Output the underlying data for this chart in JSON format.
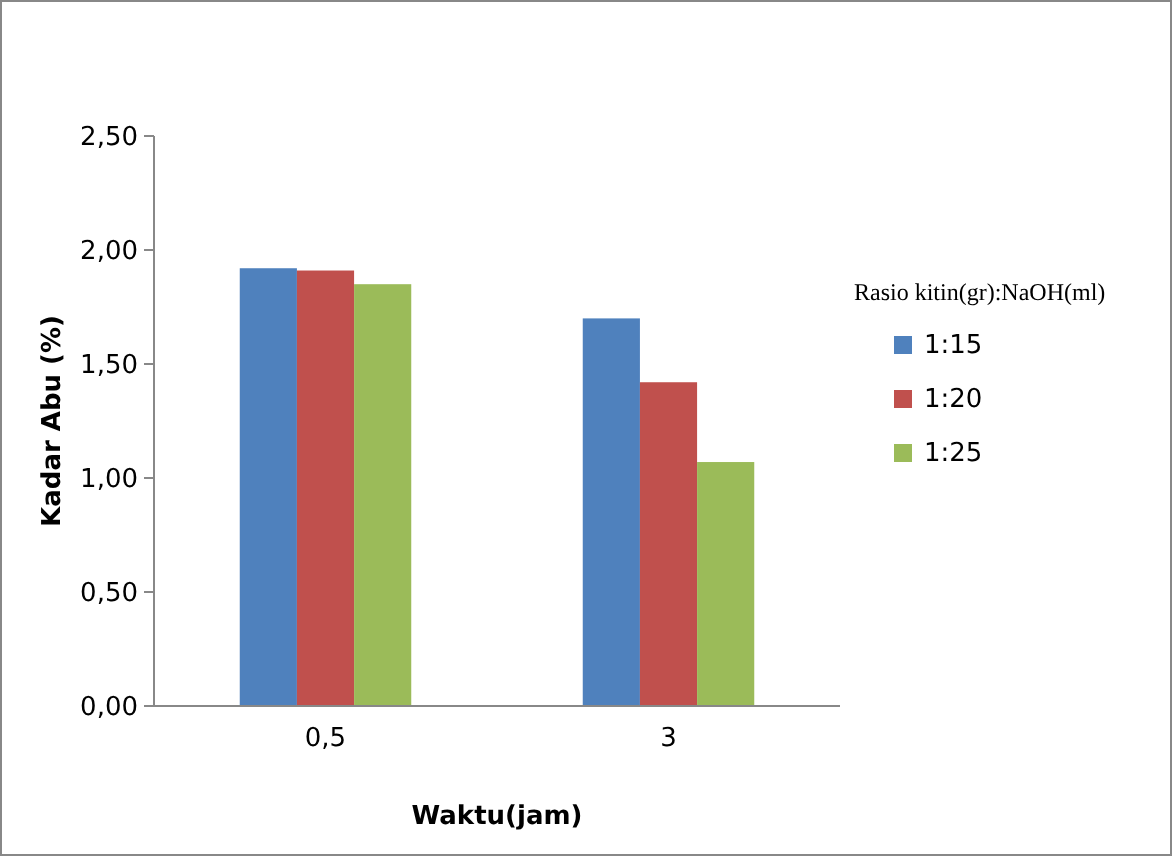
{
  "chart_data": {
    "type": "bar",
    "xlabel": "Waktu(jam)",
    "ylabel": "Kadar Abu (%)",
    "legend_title": "Rasio kitin(gr):NaOH(ml)",
    "categories": [
      "0,5",
      "3"
    ],
    "series": [
      {
        "name": "1:15",
        "color": "#4f81bd",
        "values": [
          1.92,
          1.7
        ]
      },
      {
        "name": "1:20",
        "color": "#c0504d",
        "values": [
          1.91,
          1.42
        ]
      },
      {
        "name": "1:25",
        "color": "#9bbb59",
        "values": [
          1.85,
          1.07
        ]
      }
    ],
    "ylim": [
      0,
      2.5
    ],
    "yticks": [
      {
        "value": 0,
        "label": "0,00"
      },
      {
        "value": 0.5,
        "label": "0,50"
      },
      {
        "value": 1,
        "label": "1,00"
      },
      {
        "value": 1.5,
        "label": "1,50"
      },
      {
        "value": 2,
        "label": "2,00"
      },
      {
        "value": 2.5,
        "label": "2,50"
      }
    ],
    "grid": false,
    "legend": "right"
  }
}
